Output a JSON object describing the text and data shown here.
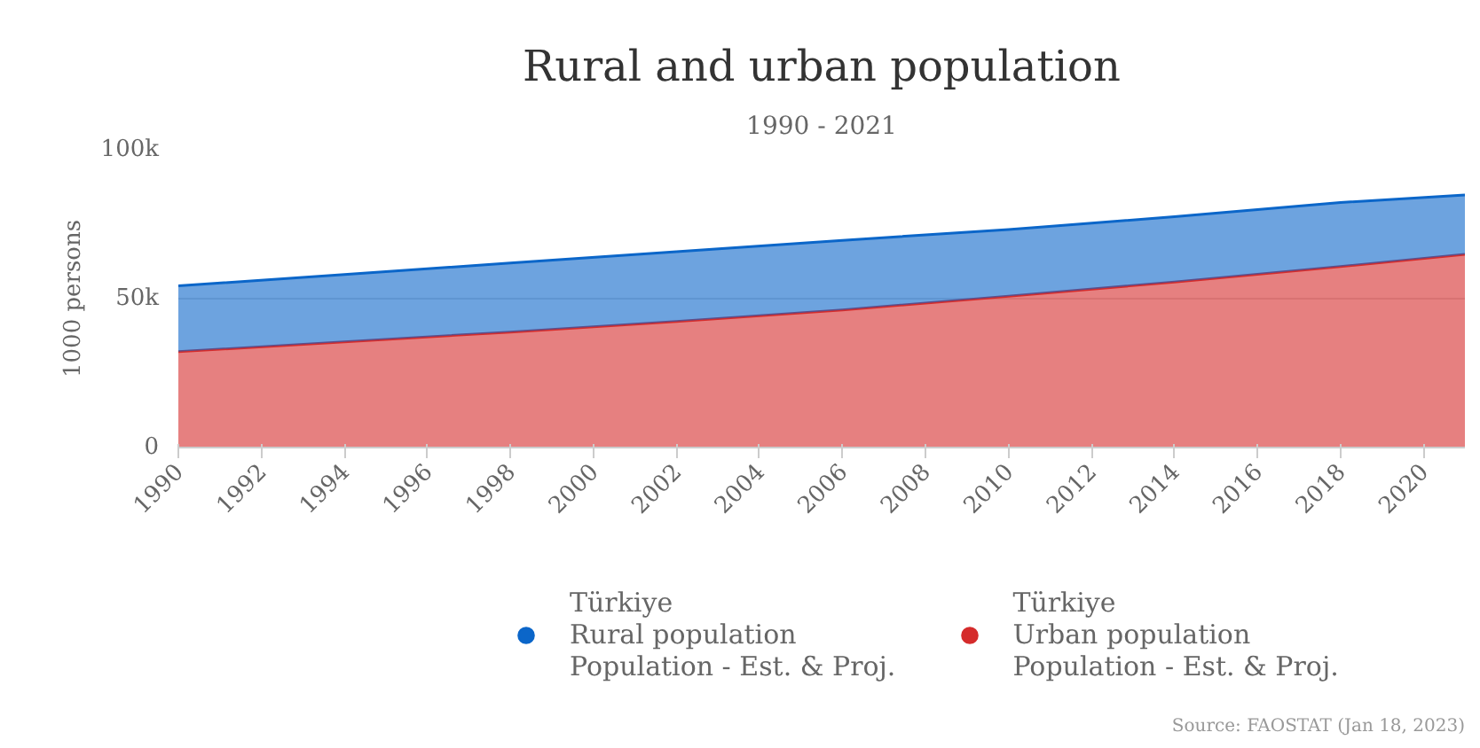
{
  "chart_data": {
    "type": "area",
    "title": "Rural and urban population",
    "subtitle": "1990 - 2021",
    "ylabel": "1000 persons",
    "stacked": true,
    "x": [
      1990,
      1994,
      1998,
      2002,
      2006,
      2010,
      2014,
      2018,
      2021
    ],
    "series": [
      {
        "name": "Türkiye\nUrban population\nPopulation - Est. & Proj.",
        "color": "#d52c2c",
        "values": [
          32.2,
          35.5,
          38.8,
          42.3,
          46.2,
          50.8,
          55.6,
          60.8,
          64.9
        ]
      },
      {
        "name": "Türkiye\nRural population\nPopulation - Est. & Proj.",
        "color": "#0b66c9",
        "values": [
          22.1,
          22.6,
          23.2,
          23.5,
          23.4,
          22.4,
          21.9,
          21.5,
          19.9
        ]
      }
    ],
    "xlim": [
      1990,
      2021
    ],
    "xticks": [
      1990,
      1992,
      1994,
      1996,
      1998,
      2000,
      2002,
      2004,
      2006,
      2008,
      2010,
      2012,
      2014,
      2016,
      2018,
      2020
    ],
    "ylim": [
      0,
      100
    ],
    "yticks": [
      {
        "value": 0,
        "label": "0"
      },
      {
        "value": 50,
        "label": "50k"
      },
      {
        "value": 100,
        "label": "100k"
      }
    ],
    "grid": "y",
    "legend": "bottom",
    "annotations": [
      "Source: FAOSTAT (Jan 18, 2023)"
    ]
  }
}
